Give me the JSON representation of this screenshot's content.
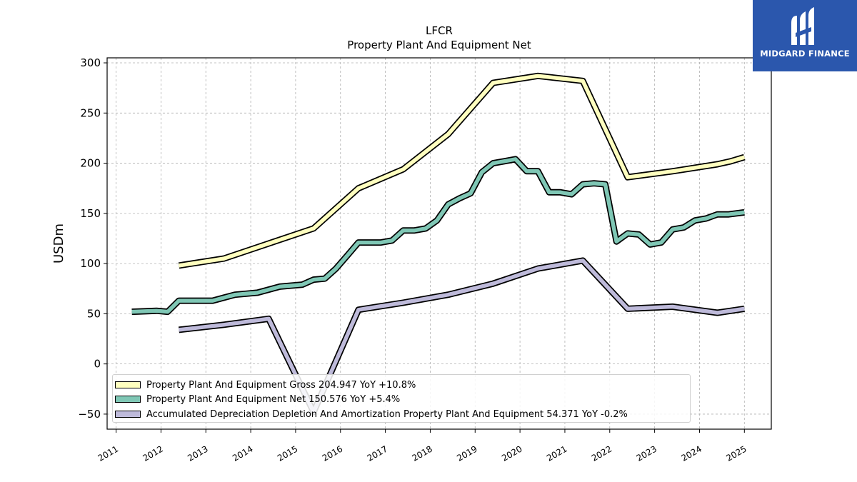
{
  "brand": {
    "name": "MIDGARD FINANCE",
    "logo_color": "#2b57ad"
  },
  "chart_data": {
    "type": "line",
    "title": "LFCR",
    "subtitle": "Property Plant And Equipment Net",
    "xlabel": "",
    "ylabel": "USDm",
    "xlim": [
      2010.8,
      2025.6
    ],
    "ylim": [
      -65,
      305
    ],
    "x_ticks": [
      "2011",
      "2012",
      "2013",
      "2014",
      "2015",
      "2016",
      "2017",
      "2018",
      "2019",
      "2020",
      "2021",
      "2022",
      "2023",
      "2024",
      "2025"
    ],
    "y_ticks": [
      "300",
      "250",
      "200",
      "150",
      "100",
      "50",
      "0",
      "−50"
    ],
    "grid": true,
    "legend_position": "lower-left",
    "series": [
      {
        "name": "Property Plant And Equipment Gross",
        "legend_label": "Property Plant And Equipment Gross  204.947 YoY +10.8%",
        "color": "#ffffbf",
        "points": [
          [
            2012.4,
            98
          ],
          [
            2013.4,
            105
          ],
          [
            2014.4,
            120
          ],
          [
            2015.4,
            135
          ],
          [
            2016.4,
            175
          ],
          [
            2017.4,
            194
          ],
          [
            2018.4,
            229
          ],
          [
            2019.4,
            280
          ],
          [
            2020.4,
            287
          ],
          [
            2021.4,
            282
          ],
          [
            2022.4,
            186
          ],
          [
            2023.4,
            192
          ],
          [
            2024.4,
            199
          ],
          [
            2024.7,
            202
          ],
          [
            2025.0,
            206
          ]
        ]
      },
      {
        "name": "Property Plant And Equipment Net",
        "legend_label": "Property Plant And Equipment Net  150.576 YoY +5.4%",
        "color": "#7fc7b5",
        "points": [
          [
            2011.35,
            52
          ],
          [
            2011.9,
            53
          ],
          [
            2012.15,
            52
          ],
          [
            2012.4,
            63
          ],
          [
            2012.65,
            63
          ],
          [
            2012.9,
            63
          ],
          [
            2013.15,
            63
          ],
          [
            2013.4,
            66
          ],
          [
            2013.65,
            69
          ],
          [
            2013.9,
            70
          ],
          [
            2014.15,
            71
          ],
          [
            2014.4,
            74
          ],
          [
            2014.65,
            77
          ],
          [
            2014.9,
            78
          ],
          [
            2015.15,
            79
          ],
          [
            2015.4,
            84
          ],
          [
            2015.65,
            85
          ],
          [
            2015.9,
            95
          ],
          [
            2016.15,
            108
          ],
          [
            2016.4,
            121
          ],
          [
            2016.65,
            121
          ],
          [
            2016.9,
            121
          ],
          [
            2017.15,
            123
          ],
          [
            2017.4,
            133
          ],
          [
            2017.65,
            133
          ],
          [
            2017.9,
            135
          ],
          [
            2018.15,
            143
          ],
          [
            2018.4,
            159
          ],
          [
            2018.65,
            165
          ],
          [
            2018.9,
            170
          ],
          [
            2019.15,
            191
          ],
          [
            2019.4,
            200
          ],
          [
            2019.65,
            202
          ],
          [
            2019.9,
            204
          ],
          [
            2020.15,
            192
          ],
          [
            2020.4,
            192
          ],
          [
            2020.65,
            171
          ],
          [
            2020.9,
            171
          ],
          [
            2021.15,
            169
          ],
          [
            2021.4,
            179
          ],
          [
            2021.65,
            180
          ],
          [
            2021.9,
            179
          ],
          [
            2022.15,
            122
          ],
          [
            2022.4,
            130
          ],
          [
            2022.65,
            129
          ],
          [
            2022.9,
            119
          ],
          [
            2023.15,
            121
          ],
          [
            2023.4,
            134
          ],
          [
            2023.65,
            136
          ],
          [
            2023.9,
            143
          ],
          [
            2024.15,
            145
          ],
          [
            2024.4,
            149
          ],
          [
            2024.65,
            149
          ],
          [
            2025.0,
            151
          ]
        ]
      },
      {
        "name": "Accumulated Depreciation Depletion And Amortization Property Plant And Equipment",
        "legend_label": "Accumulated Depreciation Depletion And Amortization Property Plant And Equipment  54.371 YoY -0.2%",
        "color": "#bebada",
        "points": [
          [
            2012.4,
            34
          ],
          [
            2013.4,
            39
          ],
          [
            2014.4,
            45
          ],
          [
            2015.4,
            -48
          ],
          [
            2016.4,
            54
          ],
          [
            2017.4,
            61
          ],
          [
            2018.4,
            69
          ],
          [
            2019.4,
            80
          ],
          [
            2020.4,
            95
          ],
          [
            2021.4,
            103
          ],
          [
            2022.4,
            55
          ],
          [
            2023.4,
            57
          ],
          [
            2024.4,
            51
          ],
          [
            2025.0,
            55
          ]
        ]
      }
    ]
  }
}
